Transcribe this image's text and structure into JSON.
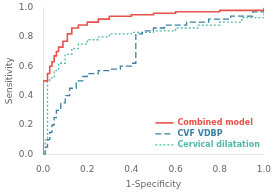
{
  "chart_data": {
    "type": "step",
    "xlabel": "1-Specificity",
    "ylabel": "Sensitivity",
    "xlim": [
      0.0,
      1.0
    ],
    "ylim": [
      0.0,
      1.0
    ],
    "xticks": [
      {
        "value": 0.0,
        "label": "0.0"
      },
      0.2,
      0.4,
      0.6,
      0.8,
      {
        "value": 1.0,
        "label": "1.0"
      }
    ],
    "yticks": [
      {
        "value": 0.0,
        "label": "0.0"
      },
      0.2,
      0.4,
      0.6,
      0.8,
      {
        "value": 1.0,
        "label": "1.0"
      }
    ],
    "grid": false,
    "legend": "lower right",
    "series": [
      {
        "name": "Combined model",
        "color": "#e8524a",
        "line_style": "solid",
        "x": [
          0.0,
          0.0,
          0.02,
          0.03,
          0.04,
          0.05,
          0.06,
          0.07,
          0.09,
          0.11,
          0.13,
          0.16,
          0.2,
          0.25,
          0.3,
          0.4,
          0.5,
          0.6,
          0.7,
          0.8,
          1.0
        ],
        "values": [
          0.0,
          0.5,
          0.55,
          0.6,
          0.63,
          0.67,
          0.7,
          0.73,
          0.77,
          0.82,
          0.86,
          0.88,
          0.9,
          0.92,
          0.94,
          0.95,
          0.96,
          0.97,
          0.97,
          0.98,
          1.0
        ]
      },
      {
        "name": "CVF VDBP",
        "color": "#3a7fa0",
        "line_style": "dashed",
        "x": [
          0.0,
          0.01,
          0.02,
          0.03,
          0.04,
          0.05,
          0.06,
          0.08,
          0.1,
          0.12,
          0.15,
          0.18,
          0.2,
          0.25,
          0.3,
          0.35,
          0.4,
          0.42,
          0.45,
          0.5,
          0.55,
          0.65,
          0.75,
          0.85,
          0.95,
          1.0
        ],
        "values": [
          0.0,
          0.05,
          0.1,
          0.15,
          0.2,
          0.25,
          0.3,
          0.35,
          0.4,
          0.45,
          0.5,
          0.53,
          0.55,
          0.57,
          0.58,
          0.6,
          0.62,
          0.82,
          0.84,
          0.86,
          0.88,
          0.9,
          0.92,
          0.94,
          0.97,
          1.0
        ]
      },
      {
        "name": "Cervical dilatation",
        "color": "#50b8a8",
        "line_style": "dotted",
        "x": [
          0.0,
          0.01,
          0.02,
          0.03,
          0.05,
          0.07,
          0.1,
          0.13,
          0.16,
          0.2,
          0.25,
          0.3,
          0.4,
          0.5,
          0.6,
          0.7,
          0.8,
          0.9,
          1.0
        ],
        "values": [
          0.0,
          0.1,
          0.5,
          0.52,
          0.57,
          0.62,
          0.68,
          0.72,
          0.75,
          0.78,
          0.8,
          0.82,
          0.83,
          0.84,
          0.86,
          0.88,
          0.9,
          0.93,
          1.0
        ]
      }
    ]
  }
}
